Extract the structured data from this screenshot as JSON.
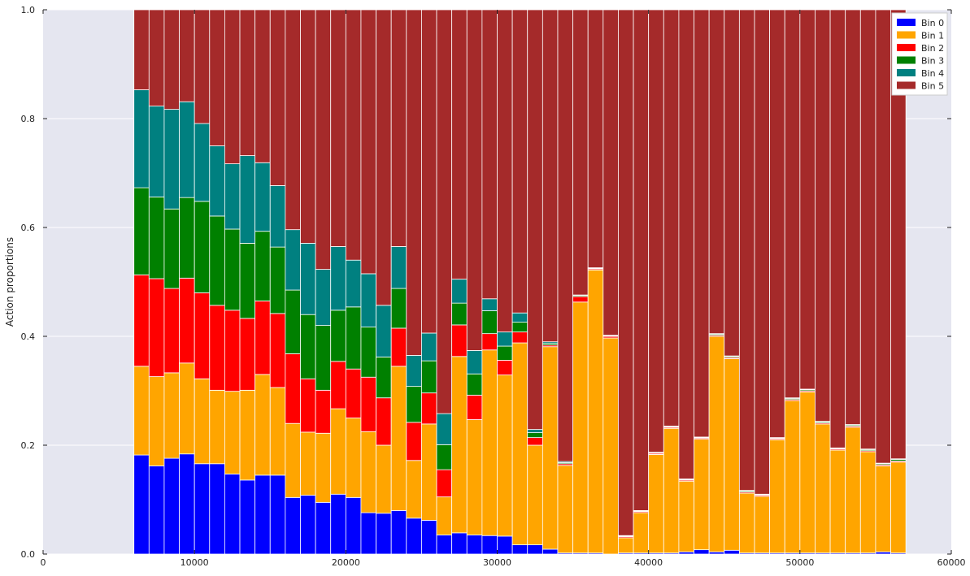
{
  "chart_data": {
    "type": "bar",
    "stacked": true,
    "title": "",
    "xlabel": "",
    "ylabel": "Action proportions",
    "xlim": [
      0,
      60000
    ],
    "ylim": [
      0,
      1.0
    ],
    "xticks": [
      "0",
      "10000",
      "20000",
      "30000",
      "40000",
      "50000",
      "60000"
    ],
    "yticks": [
      "0.0",
      "0.2",
      "0.4",
      "0.6",
      "0.8",
      "1.0"
    ],
    "grid": true,
    "legend_position": "top-right",
    "x": [
      6500,
      7500,
      8500,
      9500,
      10500,
      11500,
      12500,
      13500,
      14500,
      15500,
      16500,
      17500,
      18500,
      19500,
      20500,
      21500,
      22500,
      23500,
      24500,
      25500,
      26500,
      27500,
      28500,
      29500,
      30500,
      31500,
      32500,
      33500,
      34500,
      35500,
      36500,
      37500,
      38500,
      39500,
      40500,
      41500,
      42500,
      43500,
      44500,
      45500,
      46500,
      47500,
      48500,
      49500,
      50500,
      51500,
      52500,
      53500,
      54500,
      55500,
      56500
    ],
    "bin_width": 1000,
    "series": [
      {
        "name": "Bin 0",
        "color": "#0000ff",
        "values": [
          0.182,
          0.162,
          0.176,
          0.184,
          0.166,
          0.166,
          0.147,
          0.136,
          0.145,
          0.145,
          0.104,
          0.108,
          0.095,
          0.11,
          0.104,
          0.076,
          0.075,
          0.08,
          0.066,
          0.062,
          0.035,
          0.039,
          0.035,
          0.034,
          0.033,
          0.017,
          0.017,
          0.009,
          0.002,
          0.002,
          0.002,
          0.0,
          0.002,
          0.002,
          0.002,
          0.002,
          0.004,
          0.008,
          0.004,
          0.007,
          0.002,
          0.002,
          0.002,
          0.002,
          0.002,
          0.002,
          0.002,
          0.002,
          0.002,
          0.004,
          0.002
        ]
      },
      {
        "name": "Bin 1",
        "color": "#ffa500",
        "values": [
          0.163,
          0.164,
          0.157,
          0.167,
          0.156,
          0.135,
          0.152,
          0.165,
          0.185,
          0.161,
          0.136,
          0.116,
          0.127,
          0.157,
          0.146,
          0.149,
          0.125,
          0.265,
          0.106,
          0.177,
          0.07,
          0.324,
          0.212,
          0.341,
          0.296,
          0.371,
          0.183,
          0.372,
          0.161,
          0.461,
          0.52,
          0.397,
          0.028,
          0.074,
          0.181,
          0.229,
          0.13,
          0.203,
          0.396,
          0.352,
          0.11,
          0.104,
          0.208,
          0.28,
          0.296,
          0.237,
          0.189,
          0.231,
          0.186,
          0.158,
          0.167
        ]
      },
      {
        "name": "Bin 2",
        "color": "#ff0000",
        "values": [
          0.168,
          0.18,
          0.155,
          0.156,
          0.158,
          0.156,
          0.149,
          0.132,
          0.135,
          0.136,
          0.128,
          0.098,
          0.079,
          0.087,
          0.09,
          0.1,
          0.087,
          0.07,
          0.07,
          0.057,
          0.05,
          0.058,
          0.045,
          0.03,
          0.027,
          0.02,
          0.014,
          0.003,
          0.003,
          0.01,
          0.002,
          0.003,
          0.002,
          0.002,
          0.002,
          0.002,
          0.002,
          0.002,
          0.002,
          0.002,
          0.002,
          0.002,
          0.002,
          0.002,
          0.002,
          0.002,
          0.002,
          0.002,
          0.002,
          0.002,
          0.002
        ]
      },
      {
        "name": "Bin 3",
        "color": "#008000",
        "values": [
          0.16,
          0.15,
          0.146,
          0.148,
          0.168,
          0.164,
          0.149,
          0.138,
          0.128,
          0.122,
          0.117,
          0.118,
          0.119,
          0.094,
          0.114,
          0.092,
          0.075,
          0.073,
          0.066,
          0.059,
          0.046,
          0.04,
          0.039,
          0.042,
          0.026,
          0.018,
          0.009,
          0.003,
          0.002,
          0.002,
          0.001,
          0.001,
          0.001,
          0.001,
          0.001,
          0.001,
          0.001,
          0.001,
          0.002,
          0.002,
          0.002,
          0.001,
          0.001,
          0.002,
          0.002,
          0.002,
          0.001,
          0.002,
          0.002,
          0.002,
          0.003
        ]
      },
      {
        "name": "Bin 4",
        "color": "#008080",
        "values": [
          0.18,
          0.167,
          0.183,
          0.176,
          0.143,
          0.129,
          0.12,
          0.161,
          0.126,
          0.113,
          0.111,
          0.131,
          0.103,
          0.117,
          0.086,
          0.098,
          0.095,
          0.077,
          0.057,
          0.051,
          0.057,
          0.044,
          0.043,
          0.022,
          0.026,
          0.017,
          0.006,
          0.003,
          0.002,
          0.001,
          0.001,
          0.001,
          0.001,
          0.001,
          0.001,
          0.001,
          0.001,
          0.001,
          0.001,
          0.001,
          0.001,
          0.001,
          0.001,
          0.001,
          0.001,
          0.001,
          0.001,
          0.001,
          0.001,
          0.001,
          0.001
        ]
      },
      {
        "name": "Bin 5",
        "color": "#a52a2a",
        "values": [
          0.147,
          0.177,
          0.183,
          0.169,
          0.209,
          0.25,
          0.283,
          0.268,
          0.281,
          0.323,
          0.404,
          0.429,
          0.477,
          0.435,
          0.46,
          0.485,
          0.543,
          0.435,
          0.635,
          0.594,
          0.742,
          0.495,
          0.626,
          0.531,
          0.592,
          0.557,
          0.771,
          0.61,
          0.83,
          0.524,
          0.474,
          0.598,
          0.966,
          0.92,
          0.813,
          0.765,
          0.862,
          0.785,
          0.595,
          0.636,
          0.883,
          0.89,
          0.786,
          0.713,
          0.697,
          0.756,
          0.805,
          0.762,
          0.807,
          0.833,
          0.825
        ]
      }
    ]
  },
  "colors": {
    "plot_background": "#e5e6f0",
    "grid": "#ffffff",
    "bar_edge": "#ffffff"
  }
}
